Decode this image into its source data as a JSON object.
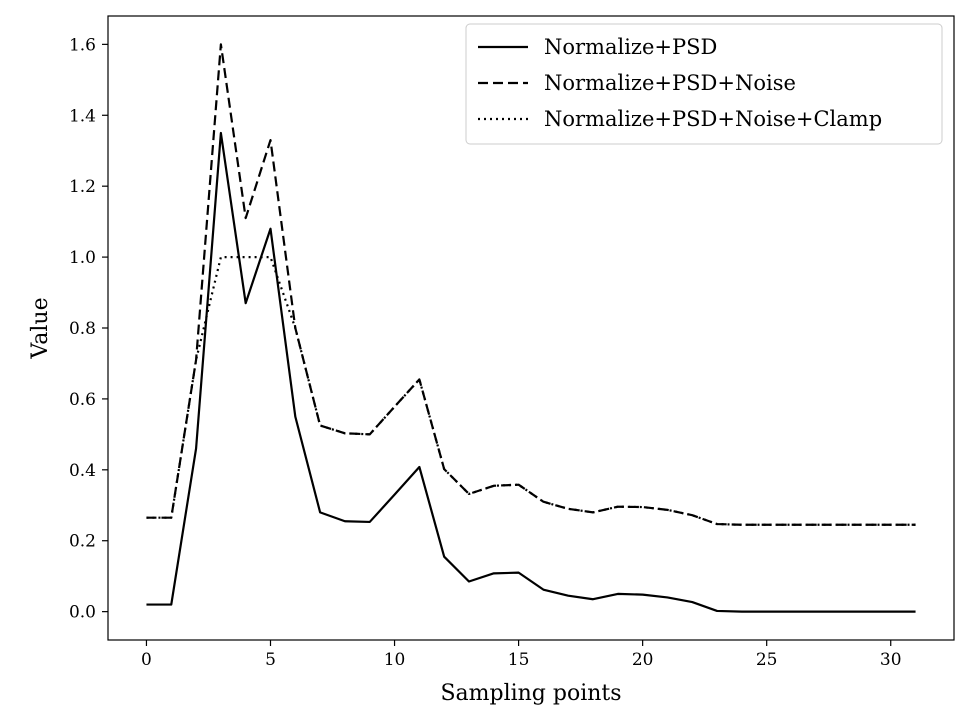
{
  "chart_data": {
    "type": "line",
    "title": "",
    "xlabel": "Sampling points",
    "ylabel": "Value",
    "xlim": [
      -1.55,
      32.55
    ],
    "ylim": [
      -0.08,
      1.68
    ],
    "xticks": [
      0,
      5,
      10,
      15,
      20,
      25,
      30
    ],
    "yticks": [
      0.0,
      0.2,
      0.4,
      0.6,
      0.8,
      1.0,
      1.2,
      1.4,
      1.6
    ],
    "grid": false,
    "legend_position": "top-right",
    "x": [
      0,
      1,
      2,
      3,
      4,
      5,
      6,
      7,
      8,
      9,
      10,
      11,
      12,
      13,
      14,
      15,
      16,
      17,
      18,
      19,
      20,
      21,
      22,
      23,
      24,
      25,
      26,
      27,
      28,
      29,
      30,
      31
    ],
    "series": [
      {
        "name": "Normalize+PSD",
        "style": "solid",
        "color": "#000000",
        "values": [
          0.02,
          0.02,
          0.46,
          1.35,
          0.87,
          1.08,
          0.55,
          0.28,
          0.255,
          0.253,
          0.33,
          0.408,
          0.155,
          0.085,
          0.108,
          0.11,
          0.062,
          0.045,
          0.035,
          0.05,
          0.048,
          0.04,
          0.027,
          0.002,
          0.0,
          0.0,
          0.0,
          0.0,
          0.0,
          0.0,
          0.0,
          0.0
        ]
      },
      {
        "name": "Normalize+PSD+Noise",
        "style": "dashed",
        "color": "#000000",
        "values": [
          0.265,
          0.265,
          0.71,
          1.6,
          1.11,
          1.33,
          0.8,
          0.525,
          0.503,
          0.5,
          0.578,
          0.655,
          0.402,
          0.332,
          0.355,
          0.358,
          0.31,
          0.29,
          0.28,
          0.296,
          0.295,
          0.287,
          0.272,
          0.247,
          0.245,
          0.245,
          0.245,
          0.245,
          0.245,
          0.245,
          0.245,
          0.245
        ]
      },
      {
        "name": "Normalize+PSD+Noise+Clamp",
        "style": "dotted",
        "color": "#000000",
        "values": [
          0.265,
          0.265,
          0.71,
          1.0,
          1.0,
          1.0,
          0.8,
          0.525,
          0.503,
          0.5,
          0.578,
          0.655,
          0.402,
          0.332,
          0.355,
          0.358,
          0.31,
          0.29,
          0.28,
          0.296,
          0.295,
          0.287,
          0.272,
          0.247,
          0.245,
          0.245,
          0.245,
          0.245,
          0.245,
          0.245,
          0.245,
          0.245
        ]
      }
    ]
  }
}
